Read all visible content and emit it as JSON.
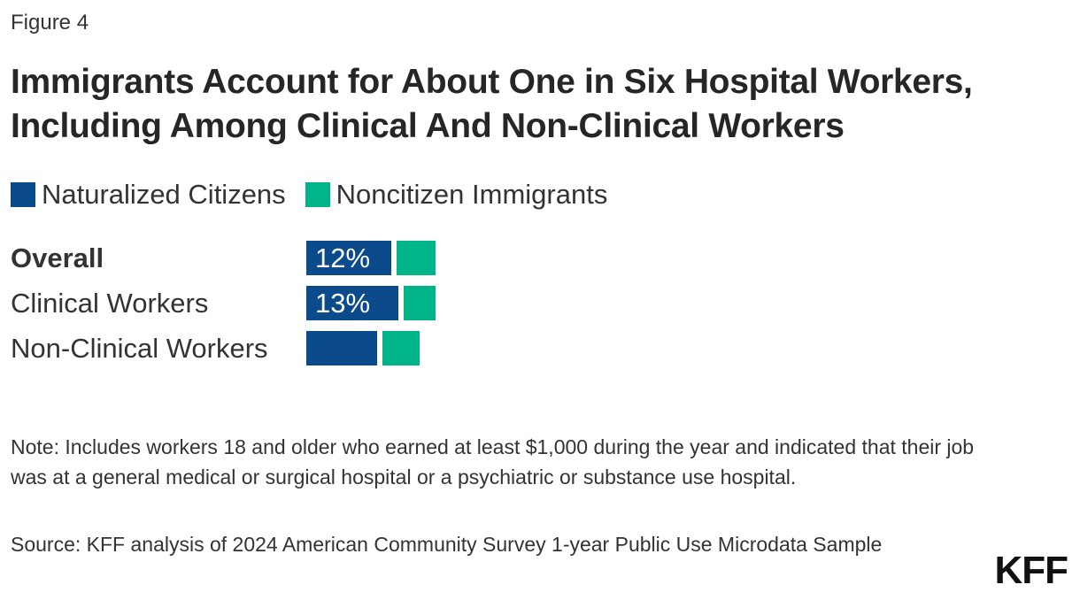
{
  "figure_label": "Figure 4",
  "title": "Immigrants Account for About One in Six Hospital Workers, Including Among Clinical And Non-Clinical Workers",
  "colors": {
    "naturalized": "#0b4a8b",
    "noncitizen": "#00b48a"
  },
  "chart_data": {
    "type": "bar",
    "orientation": "horizontal",
    "stacked": false,
    "grid": false,
    "legend_position": "top-left",
    "categories": [
      "Overall",
      "Clinical Workers",
      "Non-Clinical Workers"
    ],
    "series": [
      {
        "name": "Naturalized Citizens",
        "values": [
          12,
          13,
          10
        ]
      },
      {
        "name": "Noncitizen Immigrants",
        "values": [
          5.5,
          4.5,
          5.3
        ]
      }
    ],
    "data_labels": [
      "12%",
      "13%",
      ""
    ]
  },
  "note": "Note: Includes workers 18 and older who earned at least $1,000 during the year and indicated that their job was at a general medical or surgical hospital or a psychiatric or substance use hospital.",
  "source": "Source: KFF analysis of 2024 American Community Survey 1-year Public Use Microdata Sample",
  "logo_text": "KFF"
}
